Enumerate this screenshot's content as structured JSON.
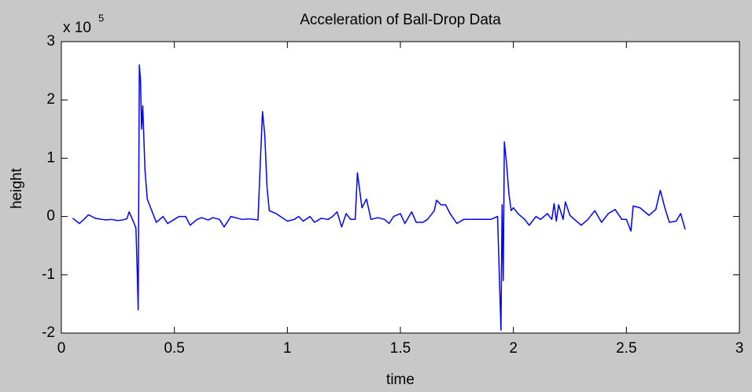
{
  "chart_data": {
    "type": "line",
    "title": "Acceleration of Ball-Drop Data",
    "x_label": "time",
    "y_label": "height",
    "y_multiplier": {
      "base": "x 10",
      "exponent": "5"
    },
    "xlim": [
      0,
      3
    ],
    "xticks": [
      0,
      0.5,
      1,
      1.5,
      2,
      2.5,
      3
    ],
    "ylim": [
      -2,
      3
    ],
    "yticks": [
      -2,
      -1,
      0,
      1,
      2,
      3
    ],
    "grid": false,
    "series": [
      {
        "name": "acceleration",
        "color": "#0000ff",
        "x": [
          0.05,
          0.08,
          0.1,
          0.12,
          0.15,
          0.18,
          0.2,
          0.22,
          0.25,
          0.27,
          0.29,
          0.3,
          0.32,
          0.33,
          0.335,
          0.34,
          0.345,
          0.35,
          0.355,
          0.36,
          0.37,
          0.38,
          0.4,
          0.42,
          0.45,
          0.47,
          0.5,
          0.52,
          0.55,
          0.57,
          0.6,
          0.62,
          0.65,
          0.67,
          0.7,
          0.72,
          0.75,
          0.78,
          0.8,
          0.83,
          0.87,
          0.88,
          0.89,
          0.9,
          0.91,
          0.92,
          0.95,
          1.0,
          1.03,
          1.05,
          1.07,
          1.1,
          1.12,
          1.15,
          1.18,
          1.2,
          1.22,
          1.24,
          1.26,
          1.28,
          1.3,
          1.31,
          1.32,
          1.33,
          1.35,
          1.37,
          1.4,
          1.43,
          1.45,
          1.47,
          1.5,
          1.52,
          1.55,
          1.57,
          1.6,
          1.62,
          1.65,
          1.66,
          1.68,
          1.7,
          1.72,
          1.75,
          1.78,
          1.8,
          1.85,
          1.9,
          1.93,
          1.945,
          1.95,
          1.955,
          1.96,
          1.97,
          1.98,
          1.99,
          2.0,
          2.02,
          2.05,
          2.07,
          2.1,
          2.12,
          2.15,
          2.17,
          2.18,
          2.19,
          2.2,
          2.22,
          2.23,
          2.25,
          2.27,
          2.3,
          2.33,
          2.36,
          2.39,
          2.42,
          2.45,
          2.48,
          2.5,
          2.52,
          2.53,
          2.56,
          2.6,
          2.63,
          2.65,
          2.67,
          2.69,
          2.72,
          2.74,
          2.76
        ],
        "values": [
          -0.03,
          -0.12,
          -0.05,
          0.03,
          -0.03,
          -0.05,
          -0.06,
          -0.05,
          -0.07,
          -0.06,
          -0.04,
          0.08,
          -0.1,
          -0.2,
          -0.85,
          -1.6,
          2.6,
          2.35,
          1.5,
          1.9,
          0.8,
          0.3,
          0.1,
          -0.1,
          0.0,
          -0.12,
          -0.05,
          0.0,
          0.0,
          -0.15,
          -0.05,
          -0.02,
          -0.06,
          -0.02,
          -0.05,
          -0.18,
          0.0,
          -0.03,
          -0.05,
          -0.04,
          -0.06,
          0.9,
          1.8,
          1.4,
          0.5,
          0.1,
          0.05,
          -0.08,
          -0.05,
          0.0,
          -0.08,
          0.0,
          -0.1,
          -0.03,
          -0.05,
          0.0,
          0.08,
          -0.18,
          0.05,
          -0.05,
          -0.05,
          0.75,
          0.45,
          0.15,
          0.3,
          -0.05,
          -0.02,
          -0.05,
          -0.12,
          0.0,
          0.05,
          -0.12,
          0.08,
          -0.1,
          -0.1,
          -0.05,
          0.1,
          0.28,
          0.2,
          0.2,
          0.05,
          -0.12,
          -0.05,
          -0.05,
          -0.05,
          -0.05,
          0.0,
          -1.95,
          0.2,
          -1.1,
          1.28,
          0.9,
          0.4,
          0.1,
          0.15,
          0.05,
          -0.05,
          -0.15,
          0.0,
          -0.05,
          0.05,
          -0.05,
          0.22,
          -0.08,
          0.2,
          -0.05,
          0.25,
          0.02,
          -0.05,
          -0.15,
          -0.05,
          0.1,
          -0.1,
          0.05,
          0.12,
          -0.05,
          -0.05,
          -0.25,
          0.18,
          0.15,
          0.02,
          0.12,
          0.45,
          0.15,
          -0.1,
          -0.08,
          0.05,
          -0.22
        ]
      }
    ]
  }
}
